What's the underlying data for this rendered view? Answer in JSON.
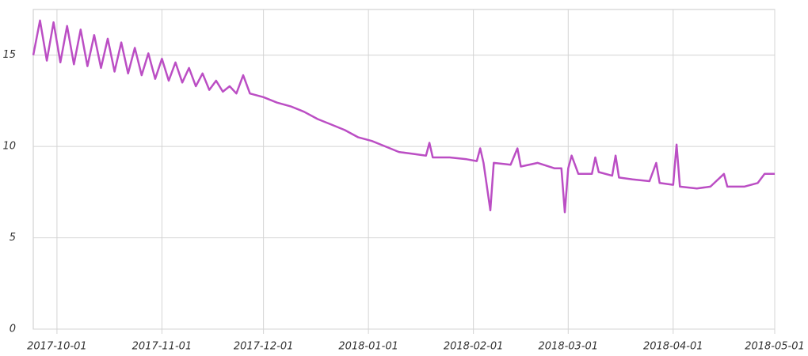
{
  "chart_data": {
    "type": "line",
    "x": [
      "2017-09-24",
      "2017-09-26",
      "2017-09-28",
      "2017-09-30",
      "2017-10-02",
      "2017-10-04",
      "2017-10-06",
      "2017-10-08",
      "2017-10-10",
      "2017-10-12",
      "2017-10-14",
      "2017-10-16",
      "2017-10-18",
      "2017-10-20",
      "2017-10-22",
      "2017-10-24",
      "2017-10-26",
      "2017-10-28",
      "2017-10-30",
      "2017-11-01",
      "2017-11-03",
      "2017-11-05",
      "2017-11-07",
      "2017-11-09",
      "2017-11-11",
      "2017-11-13",
      "2017-11-15",
      "2017-11-17",
      "2017-11-19",
      "2017-11-21",
      "2017-11-23",
      "2017-11-25",
      "2017-11-27",
      "2017-12-01",
      "2017-12-05",
      "2017-12-09",
      "2017-12-13",
      "2017-12-17",
      "2017-12-21",
      "2017-12-25",
      "2017-12-29",
      "2018-01-02",
      "2018-01-06",
      "2018-01-10",
      "2018-01-14",
      "2018-01-18",
      "2018-01-19",
      "2018-01-20",
      "2018-01-25",
      "2018-01-30",
      "2018-02-02",
      "2018-02-03",
      "2018-02-04",
      "2018-02-06",
      "2018-02-07",
      "2018-02-12",
      "2018-02-14",
      "2018-02-15",
      "2018-02-20",
      "2018-02-25",
      "2018-02-27",
      "2018-02-28",
      "2018-03-01",
      "2018-03-02",
      "2018-03-04",
      "2018-03-08",
      "2018-03-09",
      "2018-03-10",
      "2018-03-14",
      "2018-03-15",
      "2018-03-16",
      "2018-03-20",
      "2018-03-25",
      "2018-03-27",
      "2018-03-28",
      "2018-04-01",
      "2018-04-02",
      "2018-04-03",
      "2018-04-08",
      "2018-04-12",
      "2018-04-16",
      "2018-04-17",
      "2018-04-22",
      "2018-04-26",
      "2018-04-28",
      "2018-05-01"
    ],
    "series": [
      {
        "color": "#bb4ec4",
        "values": [
          15.0,
          16.9,
          14.7,
          16.8,
          14.6,
          16.6,
          14.5,
          16.4,
          14.4,
          16.1,
          14.3,
          15.9,
          14.1,
          15.7,
          14.0,
          15.4,
          13.9,
          15.1,
          13.7,
          14.8,
          13.6,
          14.6,
          13.5,
          14.3,
          13.3,
          14.0,
          13.1,
          13.6,
          13.0,
          13.3,
          12.9,
          13.9,
          12.9,
          12.7,
          12.4,
          12.2,
          11.9,
          11.5,
          11.2,
          10.9,
          10.5,
          10.3,
          10.0,
          9.7,
          9.6,
          9.5,
          10.2,
          9.4,
          9.4,
          9.3,
          9.2,
          9.9,
          9.1,
          6.5,
          9.1,
          9.0,
          9.9,
          8.9,
          9.1,
          8.8,
          8.8,
          6.4,
          8.8,
          9.5,
          8.5,
          8.5,
          9.4,
          8.6,
          8.4,
          9.5,
          8.3,
          8.2,
          8.1,
          9.1,
          8.0,
          7.9,
          10.1,
          7.8,
          7.7,
          7.8,
          8.5,
          7.8,
          7.8,
          8.0,
          8.5,
          8.5
        ]
      }
    ],
    "xlim": [
      "2017-09-24",
      "2018-05-01"
    ],
    "xticks": [
      "2017-10-01",
      "2017-11-01",
      "2017-12-01",
      "2018-01-01",
      "2018-02-01",
      "2018-03-01",
      "2018-04-01",
      "2018-05-01"
    ],
    "ylim": [
      0,
      17.5
    ],
    "yticks": [
      0,
      5,
      10,
      15
    ],
    "grid": true
  }
}
